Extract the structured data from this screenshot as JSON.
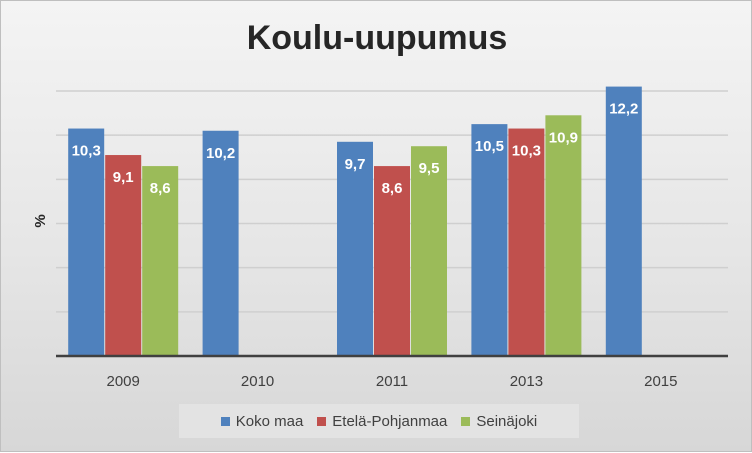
{
  "chart_data": {
    "type": "bar",
    "title": "Koulu-uupumus",
    "ylabel": "%",
    "xlabel": "",
    "categories": [
      "2009",
      "2010",
      "2011",
      "2013",
      "2015"
    ],
    "series": [
      {
        "name": "Koko maa",
        "color": "#4f81bd",
        "values": [
          10.3,
          10.2,
          9.7,
          10.5,
          12.2
        ],
        "labels": [
          "10,3",
          "10,2",
          "9,7",
          "10,5",
          "12,2"
        ]
      },
      {
        "name": "Etelä-Pohjanmaa",
        "color": "#c0504d",
        "values": [
          9.1,
          null,
          8.6,
          10.3,
          null
        ],
        "labels": [
          "9,1",
          "",
          "8,6",
          "10,3",
          ""
        ]
      },
      {
        "name": "Seinäjoki",
        "color": "#9bbb59",
        "values": [
          8.6,
          null,
          9.5,
          10.9,
          null
        ],
        "labels": [
          "8,6",
          "",
          "9,5",
          "10,9",
          ""
        ]
      }
    ],
    "ylim": [
      0,
      12
    ],
    "y_tick_step": 2,
    "y_tick_labels_shown": false,
    "grid": true,
    "legend_position": "bottom"
  }
}
